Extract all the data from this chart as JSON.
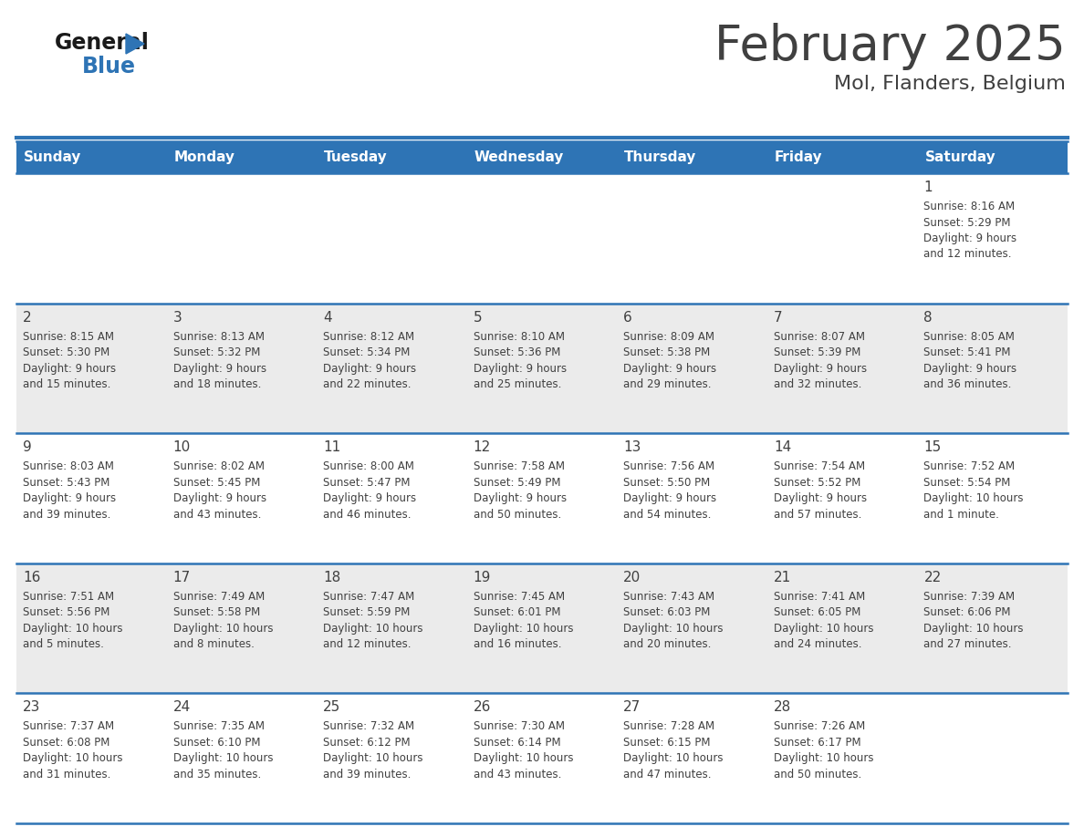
{
  "title": "February 2025",
  "subtitle": "Mol, Flanders, Belgium",
  "days_of_week": [
    "Sunday",
    "Monday",
    "Tuesday",
    "Wednesday",
    "Thursday",
    "Friday",
    "Saturday"
  ],
  "header_bg": "#2E74B5",
  "header_text_color": "#FFFFFF",
  "cell_bg_even": "#FFFFFF",
  "cell_bg_odd": "#EBEBEB",
  "divider_color": "#2E74B5",
  "text_color": "#404040",
  "day_number_color": "#404040",
  "title_color": "#404040",
  "logo_general_color": "#1A1A1A",
  "logo_blue_color": "#2E74B5",
  "weeks": [
    [
      {
        "day": null,
        "info": null
      },
      {
        "day": null,
        "info": null
      },
      {
        "day": null,
        "info": null
      },
      {
        "day": null,
        "info": null
      },
      {
        "day": null,
        "info": null
      },
      {
        "day": null,
        "info": null
      },
      {
        "day": 1,
        "info": "Sunrise: 8:16 AM\nSunset: 5:29 PM\nDaylight: 9 hours\nand 12 minutes."
      }
    ],
    [
      {
        "day": 2,
        "info": "Sunrise: 8:15 AM\nSunset: 5:30 PM\nDaylight: 9 hours\nand 15 minutes."
      },
      {
        "day": 3,
        "info": "Sunrise: 8:13 AM\nSunset: 5:32 PM\nDaylight: 9 hours\nand 18 minutes."
      },
      {
        "day": 4,
        "info": "Sunrise: 8:12 AM\nSunset: 5:34 PM\nDaylight: 9 hours\nand 22 minutes."
      },
      {
        "day": 5,
        "info": "Sunrise: 8:10 AM\nSunset: 5:36 PM\nDaylight: 9 hours\nand 25 minutes."
      },
      {
        "day": 6,
        "info": "Sunrise: 8:09 AM\nSunset: 5:38 PM\nDaylight: 9 hours\nand 29 minutes."
      },
      {
        "day": 7,
        "info": "Sunrise: 8:07 AM\nSunset: 5:39 PM\nDaylight: 9 hours\nand 32 minutes."
      },
      {
        "day": 8,
        "info": "Sunrise: 8:05 AM\nSunset: 5:41 PM\nDaylight: 9 hours\nand 36 minutes."
      }
    ],
    [
      {
        "day": 9,
        "info": "Sunrise: 8:03 AM\nSunset: 5:43 PM\nDaylight: 9 hours\nand 39 minutes."
      },
      {
        "day": 10,
        "info": "Sunrise: 8:02 AM\nSunset: 5:45 PM\nDaylight: 9 hours\nand 43 minutes."
      },
      {
        "day": 11,
        "info": "Sunrise: 8:00 AM\nSunset: 5:47 PM\nDaylight: 9 hours\nand 46 minutes."
      },
      {
        "day": 12,
        "info": "Sunrise: 7:58 AM\nSunset: 5:49 PM\nDaylight: 9 hours\nand 50 minutes."
      },
      {
        "day": 13,
        "info": "Sunrise: 7:56 AM\nSunset: 5:50 PM\nDaylight: 9 hours\nand 54 minutes."
      },
      {
        "day": 14,
        "info": "Sunrise: 7:54 AM\nSunset: 5:52 PM\nDaylight: 9 hours\nand 57 minutes."
      },
      {
        "day": 15,
        "info": "Sunrise: 7:52 AM\nSunset: 5:54 PM\nDaylight: 10 hours\nand 1 minute."
      }
    ],
    [
      {
        "day": 16,
        "info": "Sunrise: 7:51 AM\nSunset: 5:56 PM\nDaylight: 10 hours\nand 5 minutes."
      },
      {
        "day": 17,
        "info": "Sunrise: 7:49 AM\nSunset: 5:58 PM\nDaylight: 10 hours\nand 8 minutes."
      },
      {
        "day": 18,
        "info": "Sunrise: 7:47 AM\nSunset: 5:59 PM\nDaylight: 10 hours\nand 12 minutes."
      },
      {
        "day": 19,
        "info": "Sunrise: 7:45 AM\nSunset: 6:01 PM\nDaylight: 10 hours\nand 16 minutes."
      },
      {
        "day": 20,
        "info": "Sunrise: 7:43 AM\nSunset: 6:03 PM\nDaylight: 10 hours\nand 20 minutes."
      },
      {
        "day": 21,
        "info": "Sunrise: 7:41 AM\nSunset: 6:05 PM\nDaylight: 10 hours\nand 24 minutes."
      },
      {
        "day": 22,
        "info": "Sunrise: 7:39 AM\nSunset: 6:06 PM\nDaylight: 10 hours\nand 27 minutes."
      }
    ],
    [
      {
        "day": 23,
        "info": "Sunrise: 7:37 AM\nSunset: 6:08 PM\nDaylight: 10 hours\nand 31 minutes."
      },
      {
        "day": 24,
        "info": "Sunrise: 7:35 AM\nSunset: 6:10 PM\nDaylight: 10 hours\nand 35 minutes."
      },
      {
        "day": 25,
        "info": "Sunrise: 7:32 AM\nSunset: 6:12 PM\nDaylight: 10 hours\nand 39 minutes."
      },
      {
        "day": 26,
        "info": "Sunrise: 7:30 AM\nSunset: 6:14 PM\nDaylight: 10 hours\nand 43 minutes."
      },
      {
        "day": 27,
        "info": "Sunrise: 7:28 AM\nSunset: 6:15 PM\nDaylight: 10 hours\nand 47 minutes."
      },
      {
        "day": 28,
        "info": "Sunrise: 7:26 AM\nSunset: 6:17 PM\nDaylight: 10 hours\nand 50 minutes."
      },
      {
        "day": null,
        "info": null
      }
    ]
  ]
}
